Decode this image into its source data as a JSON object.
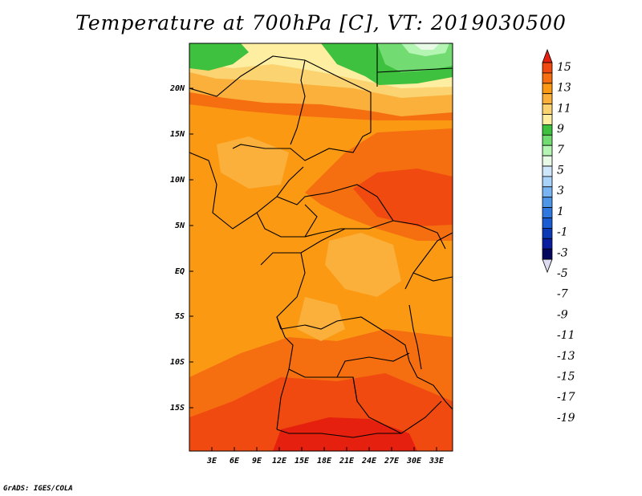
{
  "title": "Temperature at 700hPa [C], VT: 2019030500",
  "credit": "GrADS: IGES/COLA",
  "map": {
    "lat_labels": [
      "20N",
      "15N",
      "10N",
      "5N",
      "EQ",
      "5S",
      "10S",
      "15S"
    ],
    "lon_labels": [
      "3E",
      "6E",
      "9E",
      "12E",
      "15E",
      "18E",
      "21E",
      "24E",
      "27E",
      "30E",
      "33E"
    ]
  },
  "colorbar": {
    "labels": [
      "15",
      "13",
      "11",
      "9",
      "7",
      "5",
      "3",
      "1",
      "-1",
      "-3",
      "-5",
      "-7",
      "-9",
      "-11",
      "-13",
      "-15",
      "-17",
      "-19"
    ],
    "colors": [
      "#e5200f",
      "#f04a10",
      "#f56f10",
      "#fb9913",
      "#fbb03b",
      "#fbd371",
      "#fdeea1",
      "#3ec13e",
      "#72dc72",
      "#b4f5b4",
      "#e6fae6",
      "#cde6fa",
      "#a9d3f8",
      "#79b5f2",
      "#4e96e8",
      "#2f78df",
      "#1a5cd3",
      "#0c3ab6",
      "#0a1fa0",
      "#05085f",
      "#dcdcf0"
    ]
  },
  "field_colors": {
    "c1": "#3ec13e",
    "c_1": "#72dc72",
    "c_3": "#b4f5b4",
    "c_5": "#e6fae6",
    "c3": "#fdeea1",
    "c5": "#fbd371",
    "c7": "#fbb03b",
    "c9": "#fb9913",
    "c11": "#f56f10",
    "c13": "#f04a10",
    "c15": "#e5200f"
  }
}
